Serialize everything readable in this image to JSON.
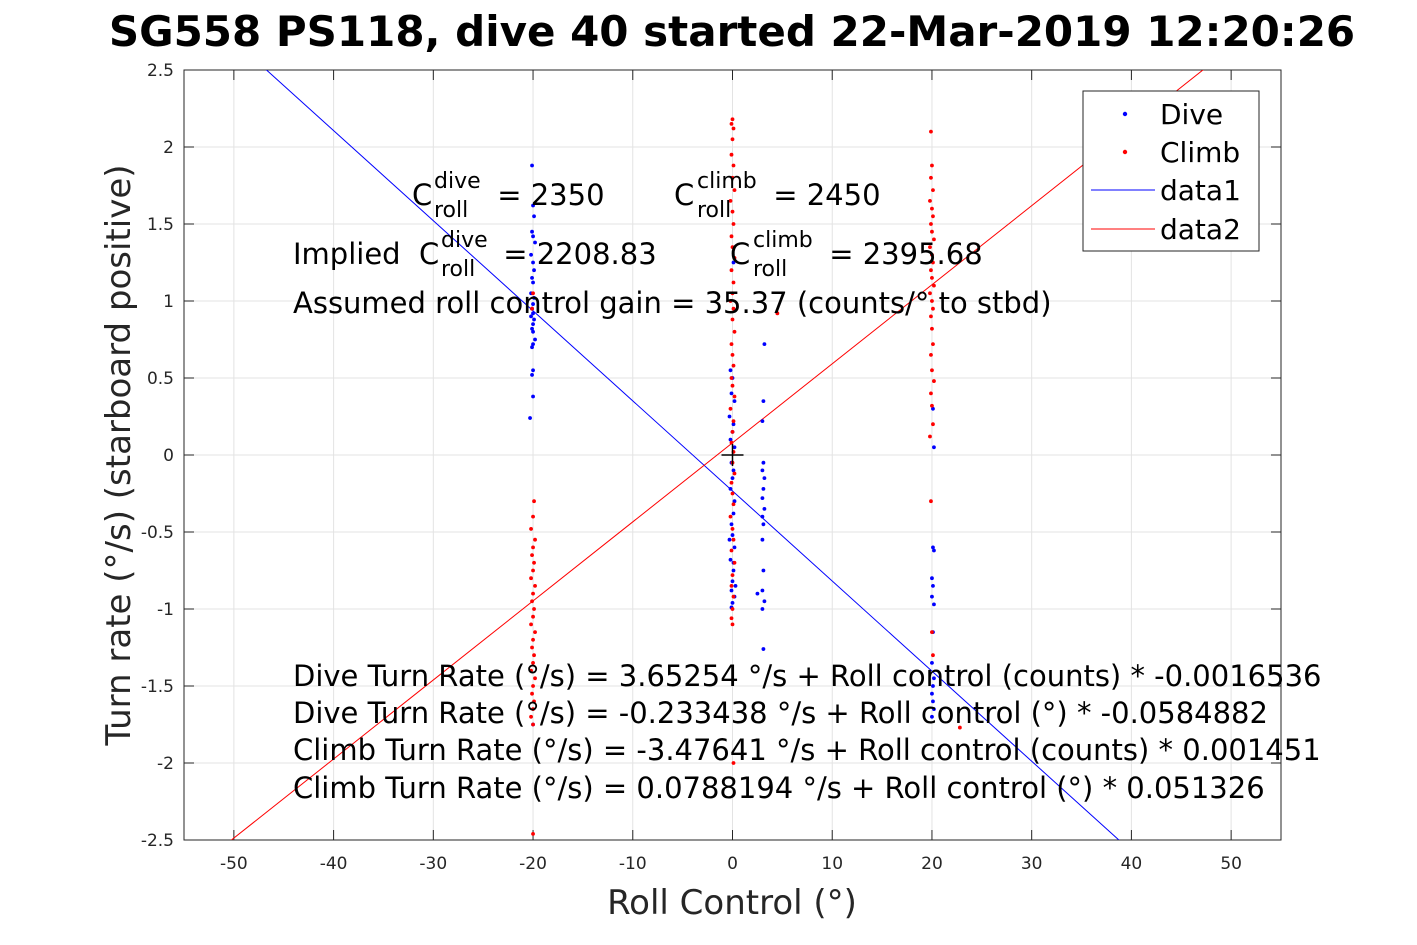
{
  "chart_data": {
    "type": "scatter",
    "title": "SG558 PS118, dive 40 started 22-Mar-2019 12:20:26",
    "xlabel": "Roll Control (°)",
    "ylabel": "Turn rate (°/s) (starboard positive)",
    "xlim": [
      -55,
      55
    ],
    "ylim": [
      -2.5,
      2.5
    ],
    "xticks": [
      -50,
      -40,
      -30,
      -20,
      -10,
      0,
      10,
      20,
      30,
      40,
      50
    ],
    "xtick_labels": [
      "-50",
      "-40",
      "-30",
      "-20",
      "-10",
      "0",
      "10",
      "20",
      "30",
      "40",
      "50"
    ],
    "yticks": [
      -2.5,
      -2,
      -1.5,
      -1,
      -0.5,
      0,
      0.5,
      1,
      1.5,
      2,
      2.5
    ],
    "ytick_labels": [
      "-2.5",
      "-2",
      "-1.5",
      "-1",
      "-0.5",
      "0",
      "0.5",
      "1",
      "1.5",
      "2",
      "2.5"
    ],
    "grid": true,
    "legend_position": "top-right",
    "colors": {
      "dive": "#0000ff",
      "climb": "#ff0000",
      "grid": "#e3e3e3",
      "axis": "#262626"
    },
    "series": [
      {
        "name": "Dive",
        "kind": "points",
        "color": "#0000ff",
        "points": [
          [
            -20.1,
            1.88
          ],
          [
            -20.0,
            1.62
          ],
          [
            -19.9,
            1.55
          ],
          [
            -20.1,
            1.45
          ],
          [
            -20.0,
            1.42
          ],
          [
            -19.8,
            1.38
          ],
          [
            -20.2,
            1.3
          ],
          [
            -20.0,
            1.25
          ],
          [
            -19.9,
            1.2
          ],
          [
            -20.1,
            1.15
          ],
          [
            -20.0,
            1.12
          ],
          [
            -20.2,
            1.05
          ],
          [
            -19.9,
            1.02
          ],
          [
            -20.0,
            0.98
          ],
          [
            -20.1,
            0.95
          ],
          [
            -20.0,
            0.92
          ],
          [
            -20.2,
            0.9
          ],
          [
            -19.9,
            0.88
          ],
          [
            -20.0,
            0.85
          ],
          [
            -20.1,
            0.82
          ],
          [
            -20.0,
            0.8
          ],
          [
            -19.8,
            0.75
          ],
          [
            -20.0,
            0.72
          ],
          [
            -20.1,
            0.7
          ],
          [
            -20.0,
            0.55
          ],
          [
            -20.1,
            0.52
          ],
          [
            -20.0,
            0.38
          ],
          [
            -20.3,
            0.24
          ],
          [
            -20.0,
            -1.75
          ],
          [
            0.1,
            1.25
          ],
          [
            -0.2,
            0.55
          ],
          [
            0.0,
            0.5
          ],
          [
            -0.1,
            0.4
          ],
          [
            0.2,
            0.35
          ],
          [
            -0.3,
            0.25
          ],
          [
            0.1,
            0.2
          ],
          [
            0.0,
            0.15
          ],
          [
            -0.2,
            0.1
          ],
          [
            0.2,
            0.05
          ],
          [
            -0.1,
            -0.05
          ],
          [
            0.1,
            -0.1
          ],
          [
            0.0,
            -0.15
          ],
          [
            -0.2,
            -0.22
          ],
          [
            0.2,
            -0.3
          ],
          [
            0.1,
            -0.38
          ],
          [
            -0.1,
            -0.45
          ],
          [
            0.0,
            -0.52
          ],
          [
            0.2,
            -0.6
          ],
          [
            -0.2,
            -0.68
          ],
          [
            0.1,
            -0.75
          ],
          [
            0.0,
            -0.82
          ],
          [
            -0.1,
            -0.88
          ],
          [
            0.2,
            -0.92
          ],
          [
            0.0,
            -0.96
          ],
          [
            -0.1,
            -0.99
          ],
          [
            0.1,
            -0.7
          ],
          [
            -0.3,
            -0.55
          ],
          [
            0.3,
            -0.85
          ],
          [
            2.5,
            -0.9
          ],
          [
            3.2,
            0.72
          ],
          [
            3.1,
            0.35
          ],
          [
            3.0,
            0.22
          ],
          [
            3.1,
            -0.05
          ],
          [
            3.0,
            -0.1
          ],
          [
            3.2,
            -0.15
          ],
          [
            3.1,
            -0.22
          ],
          [
            3.0,
            -0.28
          ],
          [
            3.2,
            -0.35
          ],
          [
            3.0,
            -0.4
          ],
          [
            3.1,
            -0.45
          ],
          [
            3.0,
            -0.55
          ],
          [
            3.1,
            -0.75
          ],
          [
            3.0,
            -0.88
          ],
          [
            3.2,
            -0.95
          ],
          [
            3.0,
            -1.0
          ],
          [
            3.1,
            -1.26
          ],
          [
            20.1,
            0.3
          ],
          [
            20.2,
            0.05
          ],
          [
            20.1,
            -0.6
          ],
          [
            20.2,
            -0.62
          ],
          [
            20.0,
            -0.8
          ],
          [
            20.1,
            -0.85
          ],
          [
            20.0,
            -0.92
          ],
          [
            20.2,
            -0.97
          ],
          [
            20.1,
            -1.15
          ],
          [
            20.0,
            -1.35
          ],
          [
            20.2,
            -1.45
          ],
          [
            20.1,
            -1.5
          ],
          [
            20.0,
            -1.55
          ],
          [
            20.1,
            -1.6
          ],
          [
            20.2,
            -1.65
          ],
          [
            20.0,
            -1.7
          ]
        ]
      },
      {
        "name": "Climb",
        "kind": "points",
        "color": "#ff0000",
        "points": [
          [
            0.0,
            2.18
          ],
          [
            -0.1,
            2.15
          ],
          [
            0.1,
            2.12
          ],
          [
            0.0,
            2.05
          ],
          [
            -0.1,
            1.95
          ],
          [
            0.1,
            1.88
          ],
          [
            0.0,
            1.8
          ],
          [
            0.2,
            1.72
          ],
          [
            -0.2,
            1.65
          ],
          [
            0.0,
            1.58
          ],
          [
            0.1,
            1.5
          ],
          [
            -0.1,
            1.42
          ],
          [
            0.0,
            1.35
          ],
          [
            0.2,
            1.28
          ],
          [
            -0.1,
            1.2
          ],
          [
            0.1,
            1.12
          ],
          [
            0.0,
            1.05
          ],
          [
            -0.2,
            1.0
          ],
          [
            0.1,
            0.95
          ],
          [
            0.0,
            0.88
          ],
          [
            0.2,
            0.8
          ],
          [
            -0.1,
            0.72
          ],
          [
            0.0,
            0.65
          ],
          [
            0.1,
            0.58
          ],
          [
            -0.1,
            0.5
          ],
          [
            0.0,
            0.45
          ],
          [
            0.2,
            0.38
          ],
          [
            -0.2,
            0.3
          ],
          [
            0.1,
            0.22
          ],
          [
            0.0,
            0.15
          ],
          [
            -0.1,
            0.08
          ],
          [
            0.1,
            0.02
          ],
          [
            0.0,
            -0.05
          ],
          [
            0.2,
            -0.12
          ],
          [
            -0.1,
            -0.18
          ],
          [
            0.0,
            -0.25
          ],
          [
            0.1,
            -0.32
          ],
          [
            -0.2,
            -0.4
          ],
          [
            0.0,
            -0.48
          ],
          [
            0.1,
            -0.55
          ],
          [
            -0.1,
            -0.62
          ],
          [
            0.2,
            -0.7
          ],
          [
            0.0,
            -0.78
          ],
          [
            -0.1,
            -0.85
          ],
          [
            0.1,
            -0.92
          ],
          [
            0.0,
            -1.0
          ],
          [
            -0.1,
            -1.06
          ],
          [
            0.0,
            -1.1
          ],
          [
            0.1,
            -2.0
          ],
          [
            4.5,
            0.92
          ],
          [
            -20.0,
            1.05
          ],
          [
            -20.1,
            0.95
          ],
          [
            -19.9,
            -0.3
          ],
          [
            -20.0,
            -0.4
          ],
          [
            -20.2,
            -0.48
          ],
          [
            -19.8,
            -0.55
          ],
          [
            -20.0,
            -0.6
          ],
          [
            -20.1,
            -0.65
          ],
          [
            -19.9,
            -0.7
          ],
          [
            -20.0,
            -0.75
          ],
          [
            -20.2,
            -0.8
          ],
          [
            -19.8,
            -0.85
          ],
          [
            -20.0,
            -0.9
          ],
          [
            -20.1,
            -0.95
          ],
          [
            -19.9,
            -1.0
          ],
          [
            -20.0,
            -1.05
          ],
          [
            -20.2,
            -1.1
          ],
          [
            -19.8,
            -1.15
          ],
          [
            -20.0,
            -1.2
          ],
          [
            -20.1,
            -1.25
          ],
          [
            -19.9,
            -1.3
          ],
          [
            -20.0,
            -1.35
          ],
          [
            -20.2,
            -1.4
          ],
          [
            -19.8,
            -1.45
          ],
          [
            -20.0,
            -1.5
          ],
          [
            -20.1,
            -1.55
          ],
          [
            -19.9,
            -1.6
          ],
          [
            -20.0,
            -1.65
          ],
          [
            -20.2,
            -1.7
          ],
          [
            -20.0,
            -1.75
          ],
          [
            -20.0,
            -2.46
          ],
          [
            19.9,
            2.1
          ],
          [
            20.0,
            1.88
          ],
          [
            19.9,
            1.8
          ],
          [
            20.1,
            1.72
          ],
          [
            19.8,
            1.65
          ],
          [
            20.0,
            1.6
          ],
          [
            20.1,
            1.55
          ],
          [
            19.9,
            1.5
          ],
          [
            20.0,
            1.45
          ],
          [
            20.2,
            1.4
          ],
          [
            19.8,
            1.35
          ],
          [
            20.0,
            1.3
          ],
          [
            20.1,
            1.25
          ],
          [
            19.9,
            1.2
          ],
          [
            20.0,
            1.15
          ],
          [
            20.2,
            1.1
          ],
          [
            19.8,
            1.05
          ],
          [
            20.0,
            1.0
          ],
          [
            20.1,
            0.95
          ],
          [
            19.9,
            0.9
          ],
          [
            20.0,
            0.82
          ],
          [
            20.1,
            0.72
          ],
          [
            19.9,
            0.65
          ],
          [
            20.0,
            0.55
          ],
          [
            20.2,
            0.48
          ],
          [
            19.9,
            0.4
          ],
          [
            20.0,
            0.32
          ],
          [
            20.1,
            0.2
          ],
          [
            19.8,
            0.12
          ],
          [
            19.9,
            -0.3
          ],
          [
            20.0,
            -1.15
          ],
          [
            20.1,
            -1.3
          ],
          [
            22.8,
            -1.77
          ]
        ]
      },
      {
        "name": "data1",
        "kind": "line",
        "color": "#0000ff",
        "x": [
          -55,
          55
        ],
        "y": [
          2.984,
          -3.451
        ]
      },
      {
        "name": "data2",
        "kind": "line",
        "color": "#ff0000",
        "x": [
          -55,
          55
        ],
        "y": [
          -2.744,
          2.902
        ]
      }
    ],
    "marker": {
      "shape": "+",
      "x": 0,
      "y": 0
    },
    "legend": [
      "Dive",
      "Climb",
      "data1",
      "data2"
    ]
  },
  "annotations": {
    "c_dive": {
      "base": "C",
      "sup": "dive",
      "sub": "roll",
      "rest": " = 2350"
    },
    "c_climb": {
      "base": "C",
      "sup": "climb",
      "sub": "roll",
      "rest": " = 2450"
    },
    "implied_prefix": "Implied ",
    "implied_dive": {
      "base": "C",
      "sup": "dive",
      "sub": "roll",
      "rest": " = 2208.83"
    },
    "implied_climb": {
      "base": "C",
      "sup": "climb",
      "sub": "roll",
      "rest": " = 2395.68"
    },
    "gain": "Assumed roll control gain = 35.37 (counts/° to stbd)",
    "eq1": "Dive Turn Rate (°/s) = 3.65254 °/s + Roll control (counts) * -0.0016536",
    "eq2": "Dive Turn Rate (°/s) = -0.233438 °/s + Roll control (°) * -0.0584882",
    "eq3": "Climb Turn Rate (°/s) = -3.47641 °/s + Roll control (counts) * 0.001451",
    "eq4": "Climb Turn Rate (°/s) = 0.0788194 °/s + Roll control (°) * 0.051326"
  }
}
